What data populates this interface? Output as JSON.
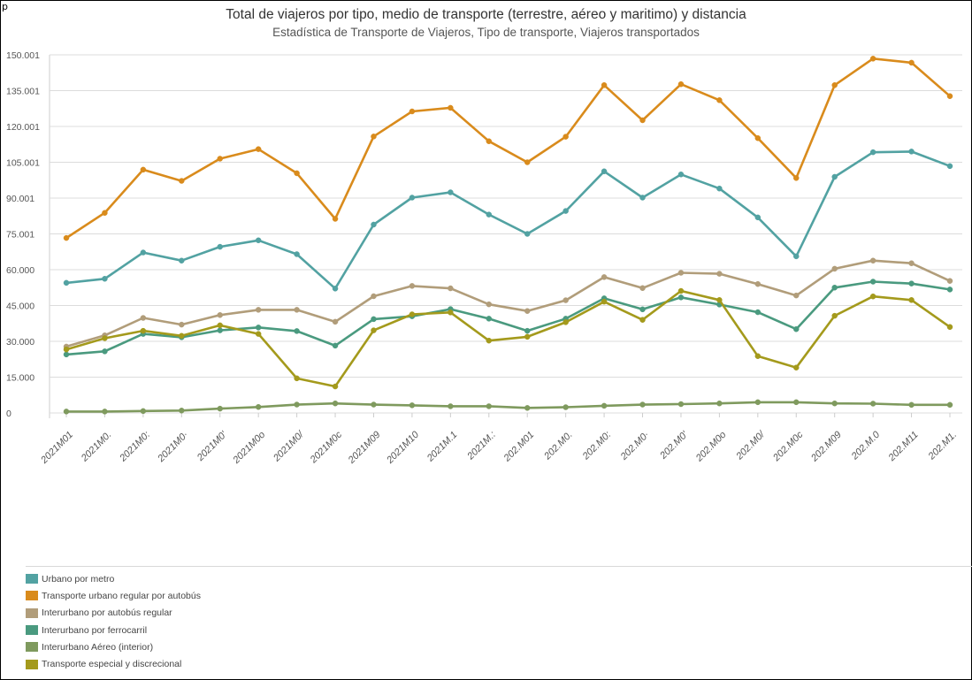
{
  "corner_mark": "p",
  "chart_data": {
    "type": "line",
    "title": "Total de viajeros por tipo, medio de transporte (terrestre, aéreo y maritimo) y distancia",
    "subtitle": "Estadística de Transporte de Viajeros, Tipo de transporte, Viajeros transportados",
    "xlabel": "",
    "ylabel": "",
    "ylim": [
      0,
      150001
    ],
    "y_ticks": [
      {
        "value": 0,
        "label": "0"
      },
      {
        "value": 15000,
        "label": "15.000"
      },
      {
        "value": 30000,
        "label": "30.000"
      },
      {
        "value": 45000,
        "label": "45.000"
      },
      {
        "value": 60000,
        "label": "60.000"
      },
      {
        "value": 75001,
        "label": "75.001"
      },
      {
        "value": 90001,
        "label": "90.001"
      },
      {
        "value": 105001,
        "label": "105.001"
      },
      {
        "value": 120001,
        "label": "120.001"
      },
      {
        "value": 135001,
        "label": "135.001"
      },
      {
        "value": 150001,
        "label": "150.001"
      }
    ],
    "grid": true,
    "legend_position": "bottom-left",
    "categories": [
      "2021M01",
      "2021M0.",
      "2021M0:",
      "2021M0·",
      "2021M0'",
      "2021M0o",
      "2021M0/",
      "2021M0c",
      "2021M09",
      "2021M10",
      "2021M.1",
      "2021M.:",
      "202.M01",
      "202.M0.",
      "202.M0:",
      "202.M0·",
      "202.M0'",
      "202.M0o",
      "202.M0/",
      "202.M0c",
      "202.M09",
      "202.M.0",
      "202.M11",
      "202.M1."
    ],
    "series": [
      {
        "name": "Urbano por metro",
        "color": "#52a2a2",
        "values": [
          54500,
          56200,
          67200,
          63800,
          69600,
          72300,
          66500,
          52100,
          78900,
          90200,
          92400,
          83100,
          75000,
          84600,
          101200,
          90200,
          99900,
          94000,
          81900,
          65600,
          98900,
          109200,
          109500,
          103400
        ]
      },
      {
        "name": "Transporte urbano regular por autobús",
        "color": "#d98b1c",
        "values": [
          73300,
          83800,
          101900,
          97200,
          106500,
          110500,
          100400,
          81300,
          115800,
          126300,
          127800,
          113800,
          105000,
          115700,
          137300,
          122600,
          137700,
          131000,
          115100,
          98400,
          137300,
          148400,
          146700,
          132700
        ]
      },
      {
        "name": "Interurbano por autobús regular",
        "color": "#b19d7a",
        "values": [
          27800,
          32500,
          39800,
          37000,
          41000,
          43200,
          43200,
          38200,
          48900,
          53200,
          52200,
          45500,
          42700,
          47200,
          56900,
          52300,
          58700,
          58300,
          54000,
          49200,
          60400,
          63800,
          62700,
          55300
        ]
      },
      {
        "name": "Interurbano por ferrocarril",
        "color": "#4a9a7f",
        "values": [
          24500,
          25800,
          33100,
          31700,
          34600,
          35800,
          34300,
          28200,
          39300,
          40500,
          43500,
          39500,
          34400,
          39500,
          48000,
          43400,
          48400,
          45400,
          42200,
          35100,
          52500,
          55000,
          54200,
          51700
        ]
      },
      {
        "name": "Interurbano Aéreo (interior)",
        "color": "#7f9a5e",
        "values": [
          600,
          600,
          800,
          1000,
          1800,
          2500,
          3500,
          4000,
          3500,
          3200,
          2800,
          2800,
          2100,
          2400,
          3000,
          3500,
          3700,
          4000,
          4500,
          4500,
          4000,
          3900,
          3400,
          3400
        ]
      },
      {
        "name": "Transporte especial y discrecional",
        "color": "#a49a1c",
        "values": [
          26600,
          31300,
          34400,
          32300,
          36700,
          33100,
          14500,
          11100,
          34600,
          41300,
          42100,
          30300,
          31900,
          38000,
          46600,
          39000,
          51100,
          47300,
          23800,
          19000,
          40700,
          48800,
          47300,
          36000
        ]
      }
    ]
  }
}
